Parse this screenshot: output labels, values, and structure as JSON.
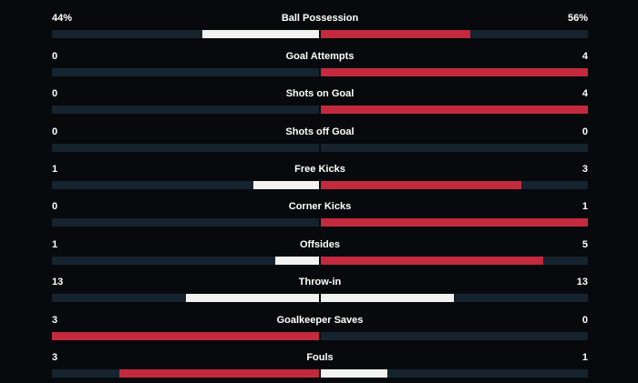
{
  "colors": {
    "background": "#07090c",
    "track": "#15232e",
    "away_fill": "#c32a3d",
    "home_fill": "#f2f2f2"
  },
  "stats": [
    {
      "name": "Ball Possession",
      "home": "44%",
      "away": "56%",
      "home_share": 0.44,
      "away_share": 0.56,
      "home_color": "#f2f2f2",
      "away_color": "#c32a3d"
    },
    {
      "name": "Goal Attempts",
      "home": "0",
      "away": "4",
      "home_share": 0,
      "away_share": 1,
      "home_color": "#f2f2f2",
      "away_color": "#c32a3d"
    },
    {
      "name": "Shots on Goal",
      "home": "0",
      "away": "4",
      "home_share": 0,
      "away_share": 1,
      "home_color": "#f2f2f2",
      "away_color": "#c32a3d"
    },
    {
      "name": "Shots off Goal",
      "home": "0",
      "away": "0",
      "home_share": 0,
      "away_share": 0,
      "home_color": "#f2f2f2",
      "away_color": "#c32a3d"
    },
    {
      "name": "Free Kicks",
      "home": "1",
      "away": "3",
      "home_share": 0.25,
      "away_share": 0.75,
      "home_color": "#f2f2f2",
      "away_color": "#c32a3d"
    },
    {
      "name": "Corner Kicks",
      "home": "0",
      "away": "1",
      "home_share": 0,
      "away_share": 1,
      "home_color": "#f2f2f2",
      "away_color": "#c32a3d"
    },
    {
      "name": "Offsides",
      "home": "1",
      "away": "5",
      "home_share": 0.1667,
      "away_share": 0.8333,
      "home_color": "#f2f2f2",
      "away_color": "#c32a3d"
    },
    {
      "name": "Throw-in",
      "home": "13",
      "away": "13",
      "home_share": 0.5,
      "away_share": 0.5,
      "home_color": "#f2f2f2",
      "away_color": "#f2f2f2"
    },
    {
      "name": "Goalkeeper Saves",
      "home": "3",
      "away": "0",
      "home_share": 1,
      "away_share": 0,
      "home_color": "#c32a3d",
      "away_color": "#f2f2f2"
    },
    {
      "name": "Fouls",
      "home": "3",
      "away": "1",
      "home_share": 0.75,
      "away_share": 0.25,
      "home_color": "#c32a3d",
      "away_color": "#f2f2f2"
    }
  ]
}
